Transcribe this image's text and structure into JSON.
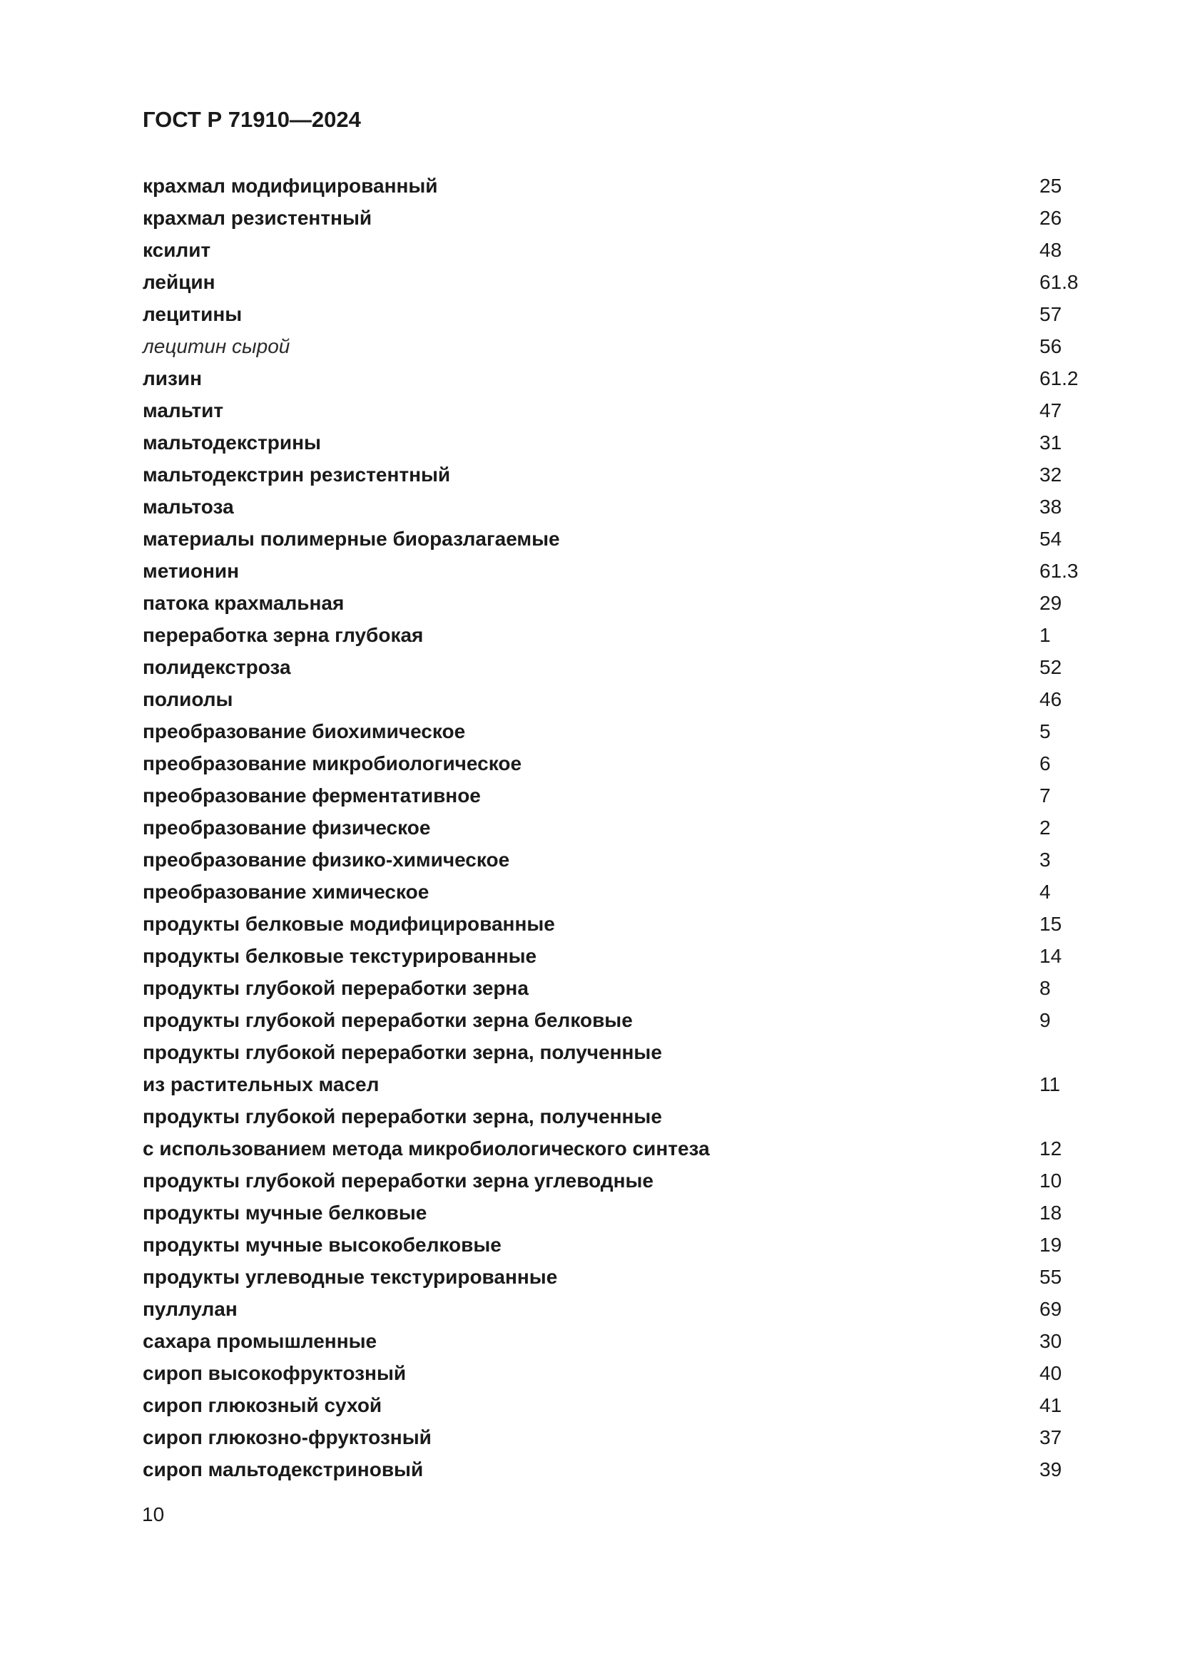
{
  "page": {
    "header": "ГОСТ Р 71910—2024",
    "footer_page_number": "10"
  },
  "index": {
    "entries": [
      {
        "term": "крахмал модифицированный",
        "ref": "25",
        "style": "bold"
      },
      {
        "term": "крахмал резистентный",
        "ref": "26",
        "style": "bold"
      },
      {
        "term": "ксилит",
        "ref": "48",
        "style": "bold"
      },
      {
        "term": "лейцин",
        "ref": "61.8",
        "style": "bold"
      },
      {
        "term": "лецитины",
        "ref": "57",
        "style": "bold"
      },
      {
        "term": "лецитин сырой",
        "ref": "56",
        "style": "italic"
      },
      {
        "term": "лизин",
        "ref": "61.2",
        "style": "bold"
      },
      {
        "term": "мальтит",
        "ref": "47",
        "style": "bold"
      },
      {
        "term": "мальтодекстрины",
        "ref": "31",
        "style": "bold"
      },
      {
        "term": "мальтодекстрин резистентный",
        "ref": "32",
        "style": "bold"
      },
      {
        "term": "мальтоза",
        "ref": "38",
        "style": "bold"
      },
      {
        "term": "материалы полимерные биоразлагаемые",
        "ref": "54",
        "style": "bold"
      },
      {
        "term": "метионин",
        "ref": "61.3",
        "style": "bold"
      },
      {
        "term": "патока крахмальная",
        "ref": "29",
        "style": "bold"
      },
      {
        "term": "переработка зерна глубокая",
        "ref": "1",
        "style": "bold"
      },
      {
        "term": "полидекстроза",
        "ref": "52",
        "style": "bold"
      },
      {
        "term": "полиолы",
        "ref": "46",
        "style": "bold"
      },
      {
        "term": "преобразование биохимическое",
        "ref": "5",
        "style": "bold"
      },
      {
        "term": "преобразование микробиологическое",
        "ref": "6",
        "style": "bold"
      },
      {
        "term": "преобразование ферментативное",
        "ref": "7",
        "style": "bold"
      },
      {
        "term": "преобразование физическое",
        "ref": "2",
        "style": "bold"
      },
      {
        "term": "преобразование физико-химическое",
        "ref": "3",
        "style": "bold"
      },
      {
        "term": "преобразование химическое",
        "ref": "4",
        "style": "bold"
      },
      {
        "term": "продукты белковые модифицированные",
        "ref": "15",
        "style": "bold"
      },
      {
        "term": "продукты белковые текстурированные",
        "ref": "14",
        "style": "bold"
      },
      {
        "term": "продукты глубокой переработки зерна",
        "ref": "8",
        "style": "bold"
      },
      {
        "term": "продукты глубокой переработки зерна белковые",
        "ref": "9",
        "style": "bold"
      },
      {
        "term": "продукты глубокой переработки зерна, полученные",
        "ref": "",
        "style": "bold"
      },
      {
        "term": "из растительных масел",
        "ref": "11",
        "style": "bold"
      },
      {
        "term": "продукты глубокой переработки зерна, полученные",
        "ref": "",
        "style": "bold"
      },
      {
        "term": "с использованием метода микробиологического синтеза",
        "ref": "12",
        "style": "bold"
      },
      {
        "term": "продукты глубокой переработки зерна углеводные",
        "ref": "10",
        "style": "bold"
      },
      {
        "term": "продукты мучные белковые",
        "ref": "18",
        "style": "bold"
      },
      {
        "term": "продукты мучные высокобелковые",
        "ref": "19",
        "style": "bold"
      },
      {
        "term": "продукты углеводные текстурированные",
        "ref": "55",
        "style": "bold"
      },
      {
        "term": "пуллулан",
        "ref": "69",
        "style": "bold"
      },
      {
        "term": "сахара промышленные",
        "ref": "30",
        "style": "bold"
      },
      {
        "term": "сироп высокофруктозный",
        "ref": "40",
        "style": "bold"
      },
      {
        "term": "сироп глюкозный сухой",
        "ref": "41",
        "style": "bold"
      },
      {
        "term": "сироп глюкозно-фруктозный",
        "ref": "37",
        "style": "bold"
      },
      {
        "term": "сироп мальтодекстриновый",
        "ref": "39",
        "style": "bold"
      }
    ]
  }
}
